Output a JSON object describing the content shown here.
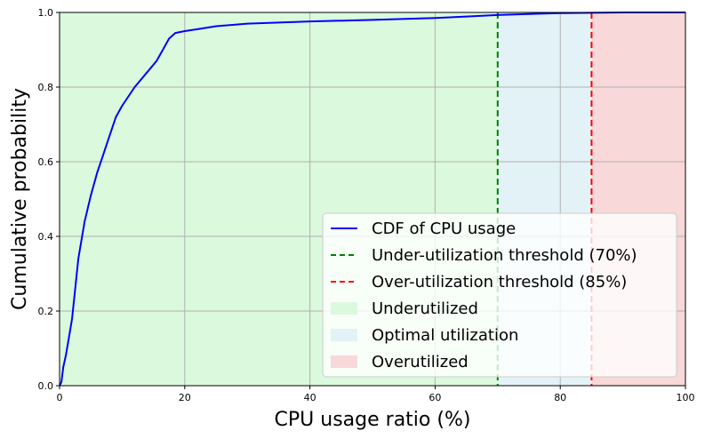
{
  "chart_data": {
    "type": "line",
    "xlabel": "CPU usage ratio (%)",
    "ylabel": "Cumulative probability",
    "xlim": [
      0,
      100
    ],
    "ylim": [
      0,
      1
    ],
    "grid": true,
    "legend_placement": "lower-right",
    "x_ticks": [
      0,
      20,
      40,
      60,
      80,
      100
    ],
    "y_ticks": [
      0.0,
      0.2,
      0.4,
      0.6,
      0.8,
      1.0
    ],
    "x_tick_labels": [
      "0",
      "20",
      "40",
      "60",
      "80",
      "100"
    ],
    "y_tick_labels": [
      "0.0",
      "0.2",
      "0.4",
      "0.6",
      "0.8",
      "1.0"
    ],
    "regions": [
      {
        "name": "Underutilized",
        "from": 0,
        "to": 70,
        "color": "#dbf9dc"
      },
      {
        "name": "Optimal utilization",
        "from": 70,
        "to": 85,
        "color": "#e3f2f6"
      },
      {
        "name": "Overutilized",
        "from": 85,
        "to": 100,
        "color": "#f8d8d8"
      }
    ],
    "thresholds": [
      {
        "name": "Under-utilization threshold (70%)",
        "x": 70,
        "color": "#008000",
        "style": "dashed"
      },
      {
        "name": "Over-utilization threshold (85%)",
        "x": 85,
        "color": "#ff0000",
        "style": "dashed"
      }
    ],
    "series": [
      {
        "name": "CDF of CPU usage",
        "color": "#0000ff",
        "x": [
          0,
          0.3,
          0.6,
          1.0,
          1.5,
          2.0,
          2.5,
          3.0,
          4.0,
          5.0,
          6.0,
          7.0,
          8.0,
          9.0,
          10.0,
          12.0,
          14.0,
          15.5,
          16.5,
          17.5,
          18.5,
          20.0,
          22.0,
          25.0,
          30.0,
          40.0,
          50.0,
          60.0,
          65.0,
          70.0,
          75.0,
          80.0,
          85.0,
          90.0,
          100.0
        ],
        "y": [
          0.0,
          0.01,
          0.05,
          0.08,
          0.13,
          0.18,
          0.26,
          0.34,
          0.44,
          0.51,
          0.57,
          0.62,
          0.67,
          0.72,
          0.75,
          0.8,
          0.84,
          0.87,
          0.9,
          0.93,
          0.945,
          0.95,
          0.955,
          0.963,
          0.97,
          0.976,
          0.98,
          0.985,
          0.989,
          0.993,
          0.996,
          0.998,
          0.999,
          1.0,
          1.0
        ]
      }
    ],
    "legend": [
      {
        "label": "CDF of CPU usage",
        "kind": "line",
        "color": "#0000ff",
        "dash": "none"
      },
      {
        "label": "Under-utilization threshold (70%)",
        "kind": "line",
        "color": "#008000",
        "dash": "dashed"
      },
      {
        "label": "Over-utilization threshold (85%)",
        "kind": "line",
        "color": "#ff0000",
        "dash": "dashed"
      },
      {
        "label": "Underutilized",
        "kind": "patch",
        "color": "#dbf9dc"
      },
      {
        "label": "Optimal utilization",
        "kind": "patch",
        "color": "#e3f2f6"
      },
      {
        "label": "Overutilized",
        "kind": "patch",
        "color": "#f8d8d8"
      }
    ]
  }
}
